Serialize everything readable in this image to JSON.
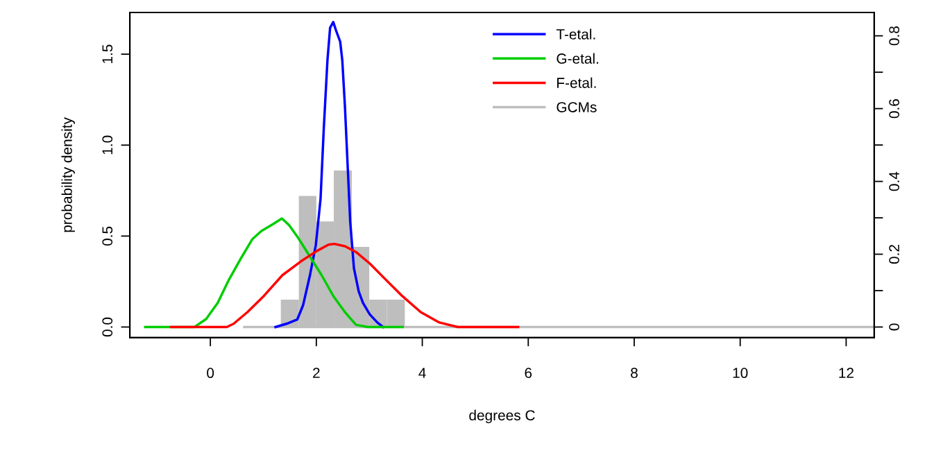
{
  "chart_data": {
    "type": "line",
    "xlabel": "degrees C",
    "ylabel": "probability density",
    "xlim": [
      -1.52,
      12.53
    ],
    "xticks": [
      0,
      2,
      4,
      6,
      8,
      10,
      12
    ],
    "ylim": [
      -0.058,
      1.729
    ],
    "yticks": [
      {
        "value": 0,
        "label": "0.0"
      },
      {
        "value": 0.5,
        "label": "0.5"
      },
      {
        "value": 1.0,
        "label": "1.0"
      },
      {
        "value": 1.5,
        "label": "1.5"
      }
    ],
    "y2lim": [
      -0.029,
      0.864
    ],
    "y2ticks": [
      0,
      {
        "value": 0.1,
        "label": null
      },
      0.2,
      {
        "value": 0.3,
        "label": null
      },
      0.4,
      {
        "value": 0.5,
        "label": null
      },
      0.6,
      {
        "value": 0.7,
        "label": null
      },
      0.8
    ],
    "legend": "top",
    "grid": false,
    "marker": "none",
    "line_style": "solid",
    "series": [
      {
        "name": "GCMs",
        "type": "histogram",
        "axis": "y2",
        "color": "#bebebe",
        "bins": [
          1.33,
          1.67,
          2.0,
          2.33,
          2.67,
          3.0,
          3.33,
          3.67
        ],
        "values": [
          0.075,
          0.36,
          0.29,
          0.43,
          0.22,
          0.075,
          0.075
        ]
      },
      {
        "type": "line",
        "axis": "y2",
        "color": "#bebebe",
        "x": [
          0.64,
          12.53
        ],
        "values": [
          0,
          0
        ]
      },
      {
        "name": "T-etal.",
        "color": "#0000ff",
        "x": [
          1.23,
          1.44,
          1.64,
          1.75,
          1.88,
          1.99,
          2.08,
          2.14,
          2.21,
          2.26,
          2.32,
          2.37,
          2.45,
          2.49,
          2.54,
          2.58,
          2.64,
          2.71,
          2.8,
          2.88,
          3.01,
          3.15,
          3.26
        ],
        "values": [
          0,
          0.018,
          0.041,
          0.12,
          0.285,
          0.45,
          0.705,
          1.086,
          1.467,
          1.645,
          1.677,
          1.632,
          1.569,
          1.467,
          1.213,
          0.959,
          0.578,
          0.323,
          0.196,
          0.133,
          0.069,
          0.025,
          0
        ]
      },
      {
        "name": "G-etal.",
        "color": "#00cd00",
        "x": [
          -1.23,
          -0.3,
          -0.08,
          0.14,
          0.35,
          0.57,
          0.79,
          0.96,
          1.18,
          1.35,
          1.49,
          1.66,
          1.88,
          2.1,
          2.32,
          2.54,
          2.75,
          2.97,
          3.63
        ],
        "values": [
          0,
          0,
          0.044,
          0.133,
          0.26,
          0.374,
          0.482,
          0.527,
          0.565,
          0.597,
          0.559,
          0.489,
          0.387,
          0.285,
          0.171,
          0.082,
          0.012,
          0,
          0
        ]
      },
      {
        "name": "F-etal.",
        "color": "#ff0000",
        "x": [
          -0.74,
          0.31,
          0.44,
          0.7,
          1.01,
          1.36,
          1.71,
          2.01,
          2.23,
          2.34,
          2.54,
          2.75,
          3.01,
          3.27,
          3.62,
          3.97,
          4.32,
          4.67,
          5.81
        ],
        "values": [
          0,
          0,
          0.018,
          0.082,
          0.171,
          0.285,
          0.361,
          0.418,
          0.453,
          0.457,
          0.444,
          0.412,
          0.349,
          0.272,
          0.171,
          0.082,
          0.025,
          0,
          0
        ]
      }
    ]
  }
}
